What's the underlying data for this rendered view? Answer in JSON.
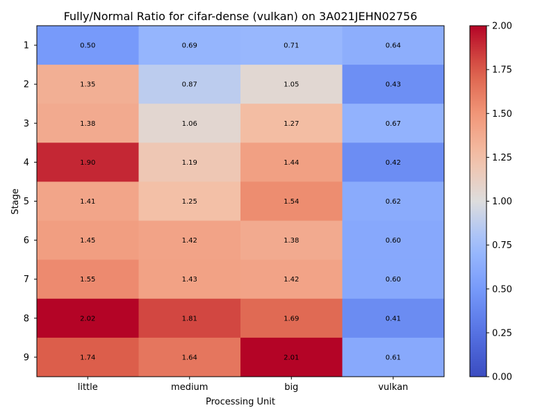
{
  "chart_data": {
    "type": "heatmap",
    "title": "Fully/Normal Ratio for cifar-dense (vulkan) on 3A021JEHN02756",
    "xlabel": "Processing Unit",
    "ylabel": "Stage",
    "x_categories": [
      "little",
      "medium",
      "big",
      "vulkan"
    ],
    "y_categories": [
      "1",
      "2",
      "3",
      "4",
      "5",
      "6",
      "7",
      "8",
      "9"
    ],
    "values": [
      [
        0.5,
        0.69,
        0.71,
        0.64
      ],
      [
        1.35,
        0.87,
        1.05,
        0.43
      ],
      [
        1.38,
        1.06,
        1.27,
        0.67
      ],
      [
        1.9,
        1.19,
        1.44,
        0.42
      ],
      [
        1.41,
        1.25,
        1.54,
        0.62
      ],
      [
        1.45,
        1.42,
        1.38,
        0.6
      ],
      [
        1.55,
        1.43,
        1.42,
        0.6
      ],
      [
        2.02,
        1.81,
        1.69,
        0.41
      ],
      [
        1.74,
        1.64,
        2.01,
        0.61
      ]
    ],
    "value_labels": [
      [
        "0.50",
        "0.69",
        "0.71",
        "0.64"
      ],
      [
        "1.35",
        "0.87",
        "1.05",
        "0.43"
      ],
      [
        "1.38",
        "1.06",
        "1.27",
        "0.67"
      ],
      [
        "1.90",
        "1.19",
        "1.44",
        "0.42"
      ],
      [
        "1.41",
        "1.25",
        "1.54",
        "0.62"
      ],
      [
        "1.45",
        "1.42",
        "1.38",
        "0.60"
      ],
      [
        "1.55",
        "1.43",
        "1.42",
        "0.60"
      ],
      [
        "2.02",
        "1.81",
        "1.69",
        "0.41"
      ],
      [
        "1.74",
        "1.64",
        "2.01",
        "0.61"
      ]
    ],
    "colormap": "coolwarm",
    "vmin": 0.0,
    "vmax": 2.0,
    "colorbar_ticks": [
      "0.00",
      "0.25",
      "0.50",
      "0.75",
      "1.00",
      "1.25",
      "1.50",
      "1.75",
      "2.00"
    ],
    "colorbar_tick_values": [
      0.0,
      0.25,
      0.5,
      0.75,
      1.0,
      1.25,
      1.5,
      1.75,
      2.0
    ]
  }
}
